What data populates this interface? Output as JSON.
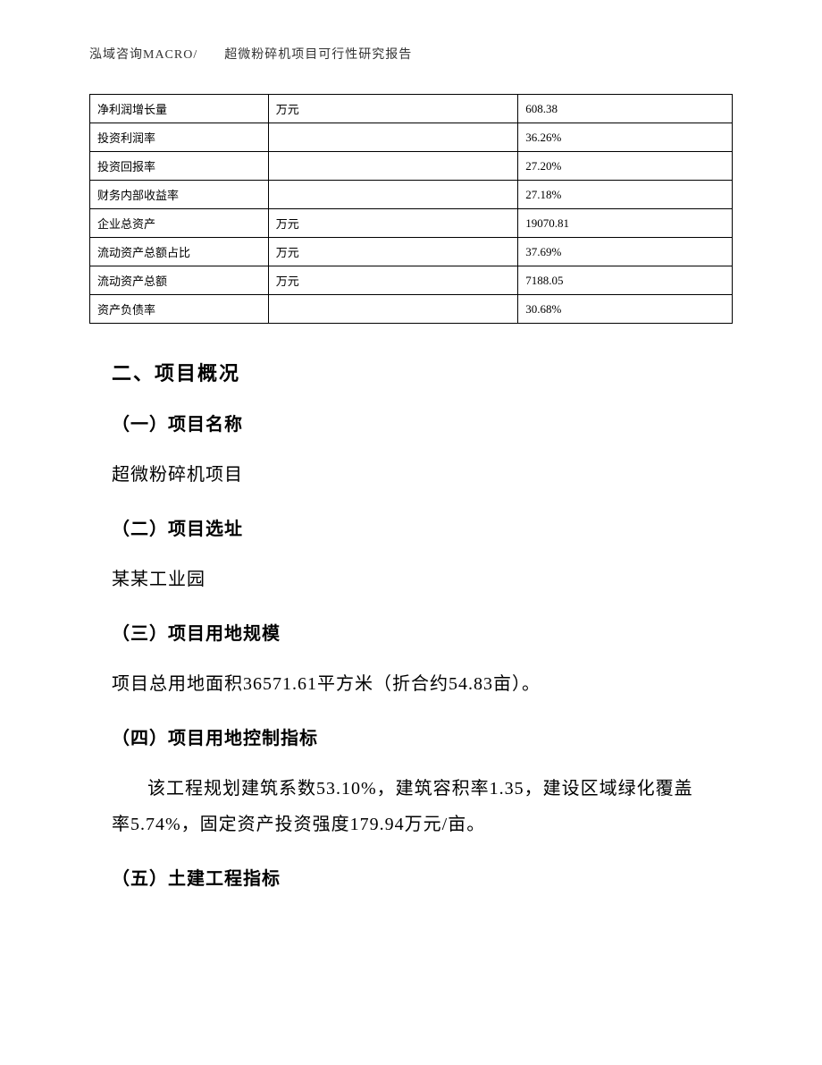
{
  "header": {
    "text": "泓域咨询MACRO/　　超微粉碎机项目可行性研究报告"
  },
  "table": {
    "rows": [
      {
        "label": "净利润增长量",
        "unit": "万元",
        "value": "608.38"
      },
      {
        "label": "投资利润率",
        "unit": "",
        "value": "36.26%"
      },
      {
        "label": "投资回报率",
        "unit": "",
        "value": "27.20%"
      },
      {
        "label": "财务内部收益率",
        "unit": "",
        "value": "27.18%"
      },
      {
        "label": "企业总资产",
        "unit": "万元",
        "value": "19070.81"
      },
      {
        "label": "流动资产总额占比",
        "unit": "万元",
        "value": "37.69%"
      },
      {
        "label": "流动资产总额",
        "unit": "万元",
        "value": "7188.05"
      },
      {
        "label": "资产负债率",
        "unit": "",
        "value": "30.68%"
      }
    ]
  },
  "content": {
    "section_title": "二、项目概况",
    "subsection1": {
      "title": "（一）项目名称",
      "text": "超微粉碎机项目"
    },
    "subsection2": {
      "title": "（二）项目选址",
      "text": "某某工业园"
    },
    "subsection3": {
      "title": "（三）项目用地规模",
      "text": "项目总用地面积36571.61平方米（折合约54.83亩）。"
    },
    "subsection4": {
      "title": "（四）项目用地控制指标",
      "text": "该工程规划建筑系数53.10%，建筑容积率1.35，建设区域绿化覆盖率5.74%，固定资产投资强度179.94万元/亩。"
    },
    "subsection5": {
      "title": "（五）土建工程指标"
    }
  }
}
